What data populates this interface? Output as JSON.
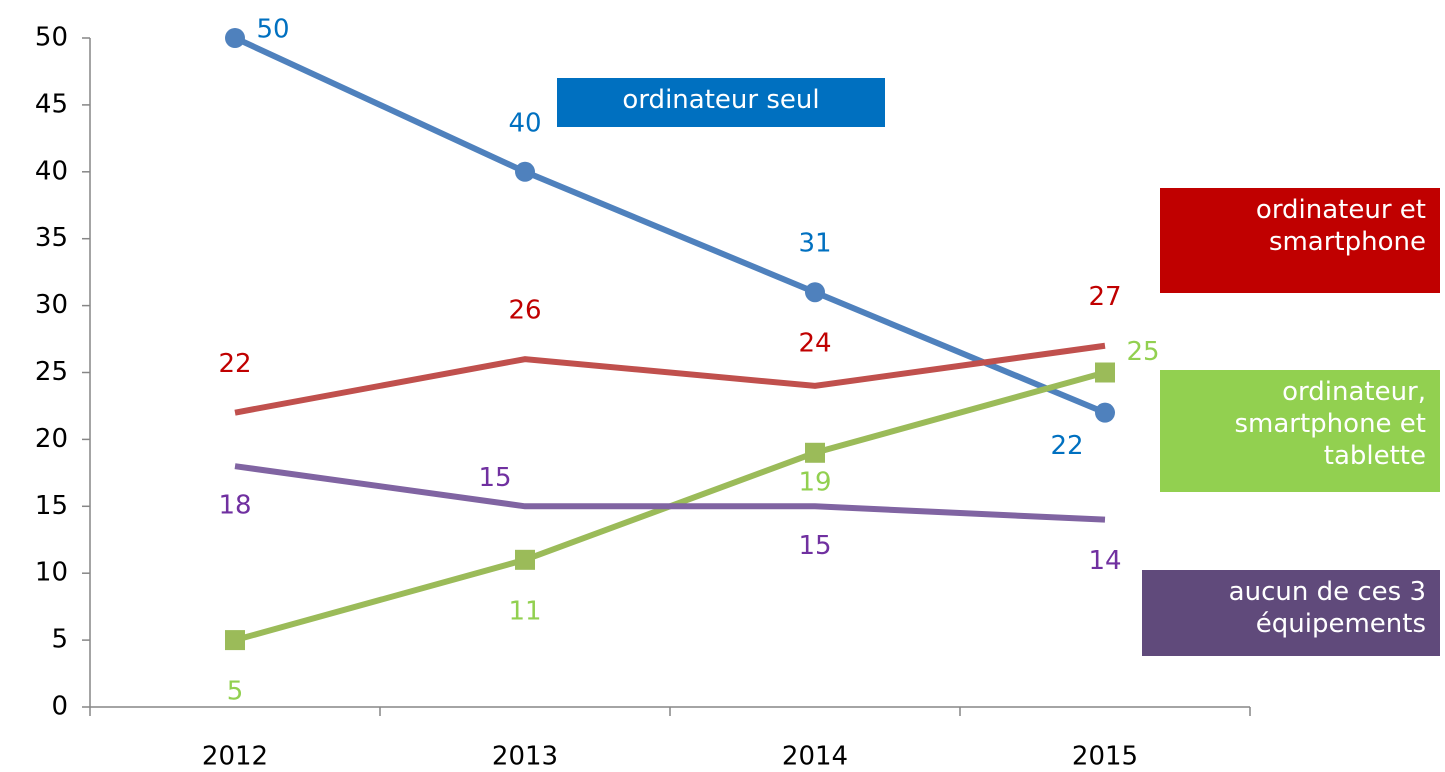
{
  "chart_data": {
    "type": "line",
    "categories": [
      "2012",
      "2013",
      "2014",
      "2015"
    ],
    "ylim": [
      0,
      50
    ],
    "yticks": [
      0,
      5,
      10,
      15,
      20,
      25,
      30,
      35,
      40,
      45,
      50
    ],
    "series": [
      {
        "name": "ordinateur seul",
        "color": "#4f81bd",
        "label_color": "#0070c0",
        "marker": "circle",
        "values": [
          50,
          40,
          31,
          22
        ]
      },
      {
        "name": "ordinateur et smartphone",
        "color": "#c0504d",
        "label_color": "#c00000",
        "marker": "none",
        "values": [
          22,
          26,
          24,
          27
        ]
      },
      {
        "name": "ordinateur, smartphone et tablette",
        "color": "#9bbb59",
        "label_color": "#92d050",
        "marker": "square",
        "values": [
          5,
          11,
          19,
          25
        ]
      },
      {
        "name": "aucun de ces 3 équipements",
        "color": "#8064a2",
        "label_color": "#7030a0",
        "marker": "none",
        "legend_color": "#604a7b",
        "values": [
          18,
          15,
          15,
          14
        ]
      }
    ]
  }
}
